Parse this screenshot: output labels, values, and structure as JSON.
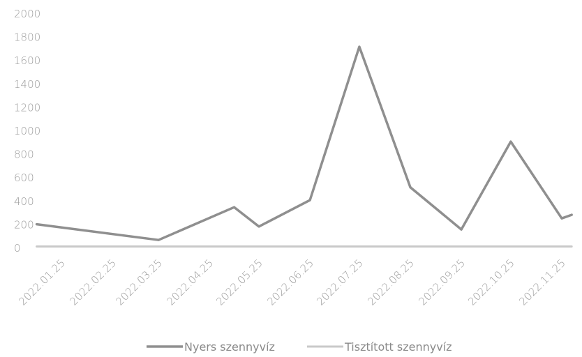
{
  "chart_data": {
    "type": "line",
    "x": [
      "2022.01.25",
      "2022.02.25",
      "2022.03.25",
      "2022.04.25",
      "2022.05.25",
      "2022.06.25",
      "2022.07.25",
      "2022.08.25",
      "2022.09.25",
      "2022.10.25",
      "2022.11.25"
    ],
    "series": [
      {
        "name": "Nyers szennyvíz",
        "points": [
          {
            "x": "2022.01.10",
            "y": 205
          },
          {
            "x": "2022.03.25",
            "y": 70
          },
          {
            "x": "2022.05.10",
            "y": 350
          },
          {
            "x": "2022.05.25",
            "y": 185
          },
          {
            "x": "2022.06.25",
            "y": 410
          },
          {
            "x": "2022.07.25",
            "y": 1720
          },
          {
            "x": "2022.08.25",
            "y": 520
          },
          {
            "x": "2022.09.25",
            "y": 160
          },
          {
            "x": "2022.10.25",
            "y": 910
          },
          {
            "x": "2022.11.25",
            "y": 255
          },
          {
            "x": "2022.12.01",
            "y": 285
          }
        ],
        "color": "#8f8f8f"
      },
      {
        "name": "Tisztított szennyvíz",
        "points": [
          {
            "x": "2022.01.10",
            "y": 15
          },
          {
            "x": "2022.12.01",
            "y": 15
          }
        ],
        "color": "#c9c9c9"
      }
    ],
    "ylim": [
      0,
      2000
    ],
    "yticks": [
      "0",
      "200",
      "400",
      "600",
      "800",
      "1000",
      "1200",
      "1400",
      "1600",
      "1800",
      "2000"
    ],
    "legend_position": "bottom-center",
    "grid": false
  }
}
